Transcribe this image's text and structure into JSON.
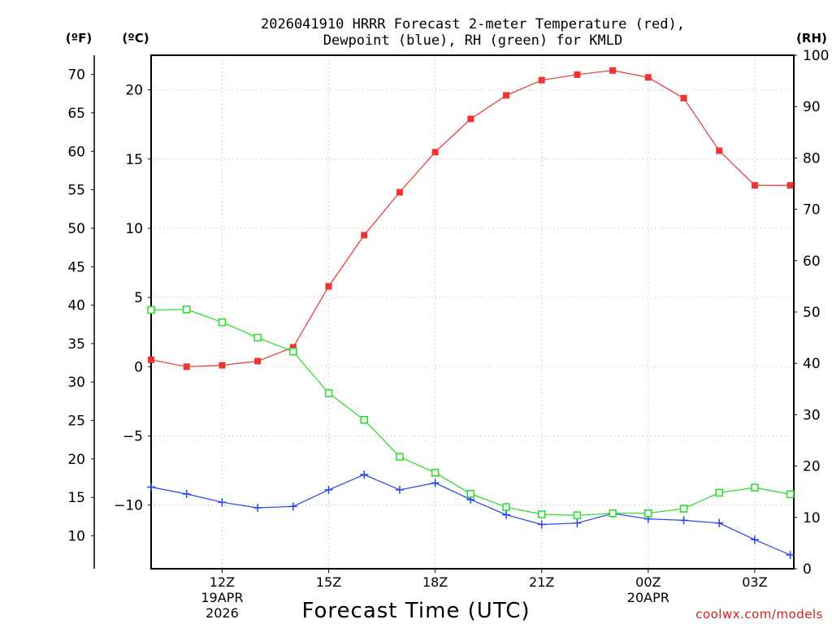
{
  "chart_data": {
    "type": "line",
    "title_line1": "2026041910 HRRR Forecast 2-meter Temperature (red),",
    "title_line2": "Dewpoint (blue), RH (green) for KMLD",
    "xlabel": "Forecast Time (UTC)",
    "unit_f": "(ºF)",
    "unit_c": "(ºC)",
    "unit_rh": "(RH)",
    "credit": "coolwx.com/models",
    "x_range_hours": [
      10,
      28.1
    ],
    "c_range": [
      -14.6,
      22.5
    ],
    "rh_range": [
      0,
      100
    ],
    "f_ticks": [
      10,
      15,
      20,
      25,
      30,
      35,
      40,
      45,
      50,
      55,
      60,
      65,
      70
    ],
    "c_ticks": [
      -10,
      -5,
      0,
      5,
      10,
      15,
      20
    ],
    "c_tick_labels": [
      "−10",
      "−5",
      "0",
      "5",
      "10",
      "15",
      "20"
    ],
    "rh_ticks": [
      0,
      10,
      20,
      30,
      40,
      50,
      60,
      70,
      80,
      90,
      100
    ],
    "x_ticks": [
      {
        "hour": 12,
        "label": "12Z",
        "sub1": "19APR",
        "sub2": "2026"
      },
      {
        "hour": 15,
        "label": "15Z",
        "sub1": "",
        "sub2": ""
      },
      {
        "hour": 18,
        "label": "18Z",
        "sub1": "",
        "sub2": ""
      },
      {
        "hour": 21,
        "label": "21Z",
        "sub1": "",
        "sub2": ""
      },
      {
        "hour": 24,
        "label": "00Z",
        "sub1": "20APR",
        "sub2": ""
      },
      {
        "hour": 27,
        "label": "03Z",
        "sub1": "",
        "sub2": ""
      }
    ],
    "hours": [
      10,
      11,
      12,
      13,
      14,
      15,
      16,
      17,
      18,
      19,
      20,
      21,
      22,
      23,
      24,
      25,
      26,
      27,
      28
    ],
    "series": [
      {
        "name": "2-meter Temperature",
        "axis": "celsius",
        "color": "#ee3333",
        "marker": "filled-square",
        "values": [
          0.5,
          0.0,
          0.1,
          0.4,
          1.4,
          5.8,
          9.5,
          12.6,
          15.5,
          17.9,
          19.6,
          20.7,
          21.1,
          21.4,
          20.9,
          19.4,
          15.6,
          13.1,
          13.1
        ]
      },
      {
        "name": "Dewpoint",
        "axis": "celsius",
        "color": "#2244ee",
        "marker": "plus",
        "values": [
          -8.7,
          -9.2,
          -9.8,
          -10.2,
          -10.1,
          -8.9,
          -7.8,
          -8.9,
          -8.4,
          -9.6,
          -10.7,
          -11.4,
          -11.3,
          -10.6,
          -11.0,
          -11.1,
          -11.3,
          -12.5,
          -13.6
        ]
      },
      {
        "name": "RH",
        "axis": "rh",
        "color": "#22dd22",
        "marker": "open-square",
        "values": [
          50.4,
          50.5,
          48.0,
          45.0,
          42.3,
          34.2,
          29.0,
          21.8,
          18.7,
          14.6,
          12.0,
          10.6,
          10.4,
          10.8,
          10.8,
          11.7,
          14.8,
          15.8,
          14.5
        ]
      }
    ]
  }
}
